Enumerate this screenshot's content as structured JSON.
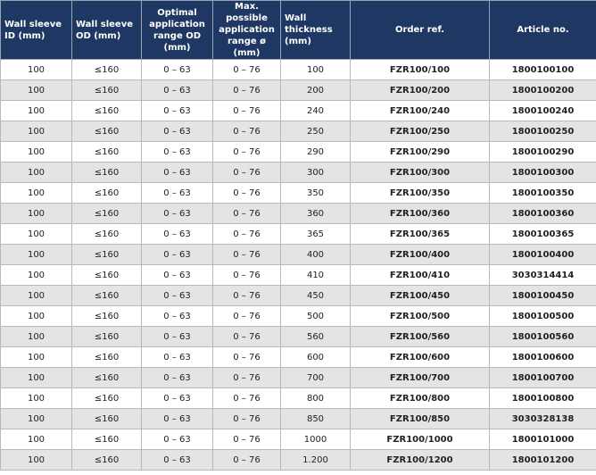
{
  "table": {
    "headers": [
      "Wall sleeve ID (mm)",
      "Wall sleeve OD (mm)",
      "Optimal application range OD (mm)",
      "Max. possible application range ø (mm)",
      "Wall thickness (mm)",
      "Order ref.",
      "Article no."
    ],
    "rows": [
      [
        "100",
        "≤160",
        "0 – 63",
        "0 – 76",
        "100",
        "FZR100/100",
        "1800100100"
      ],
      [
        "100",
        "≤160",
        "0 – 63",
        "0 – 76",
        "200",
        "FZR100/200",
        "1800100200"
      ],
      [
        "100",
        "≤160",
        "0 – 63",
        "0 – 76",
        "240",
        "FZR100/240",
        "1800100240"
      ],
      [
        "100",
        "≤160",
        "0 – 63",
        "0 – 76",
        "250",
        "FZR100/250",
        "1800100250"
      ],
      [
        "100",
        "≤160",
        "0 – 63",
        "0 – 76",
        "290",
        "FZR100/290",
        "1800100290"
      ],
      [
        "100",
        "≤160",
        "0 – 63",
        "0 – 76",
        "300",
        "FZR100/300",
        "1800100300"
      ],
      [
        "100",
        "≤160",
        "0 – 63",
        "0 – 76",
        "350",
        "FZR100/350",
        "1800100350"
      ],
      [
        "100",
        "≤160",
        "0 – 63",
        "0 – 76",
        "360",
        "FZR100/360",
        "1800100360"
      ],
      [
        "100",
        "≤160",
        "0 – 63",
        "0 – 76",
        "365",
        "FZR100/365",
        "1800100365"
      ],
      [
        "100",
        "≤160",
        "0 – 63",
        "0 – 76",
        "400",
        "FZR100/400",
        "1800100400"
      ],
      [
        "100",
        "≤160",
        "0 – 63",
        "0 – 76",
        "410",
        "FZR100/410",
        "3030314414"
      ],
      [
        "100",
        "≤160",
        "0 – 63",
        "0 – 76",
        "450",
        "FZR100/450",
        "1800100450"
      ],
      [
        "100",
        "≤160",
        "0 – 63",
        "0 – 76",
        "500",
        "FZR100/500",
        "1800100500"
      ],
      [
        "100",
        "≤160",
        "0 – 63",
        "0 – 76",
        "560",
        "FZR100/560",
        "1800100560"
      ],
      [
        "100",
        "≤160",
        "0 – 63",
        "0 – 76",
        "600",
        "FZR100/600",
        "1800100600"
      ],
      [
        "100",
        "≤160",
        "0 – 63",
        "0 – 76",
        "700",
        "FZR100/700",
        "1800100700"
      ],
      [
        "100",
        "≤160",
        "0 – 63",
        "0 – 76",
        "800",
        "FZR100/800",
        "1800100800"
      ],
      [
        "100",
        "≤160",
        "0 – 63",
        "0 – 76",
        "850",
        "FZR100/850",
        "3030328138"
      ],
      [
        "100",
        "≤160",
        "0 – 63",
        "0 – 76",
        "1000",
        "FZR100/1000",
        "1800101000"
      ],
      [
        "100",
        "≤160",
        "0 – 63",
        "0 – 76",
        "1.200",
        "FZR100/1200",
        "1800101200"
      ]
    ]
  }
}
